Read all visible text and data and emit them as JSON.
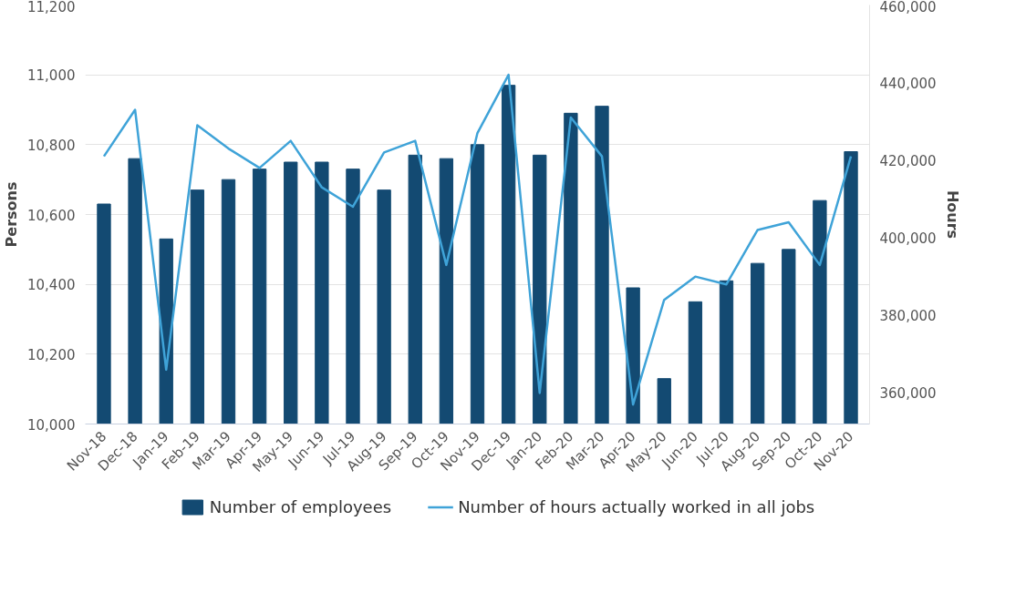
{
  "chart_data": {
    "type": "bar",
    "categories": [
      "Nov-18",
      "Dec-18",
      "Jan-19",
      "Feb-19",
      "Mar-19",
      "Apr-19",
      "May-19",
      "Jun-19",
      "Jul-19",
      "Aug-19",
      "Sep-19",
      "Oct-19",
      "Nov-19",
      "Dec-19",
      "Jan-20",
      "Feb-20",
      "Mar-20",
      "Apr-20",
      "May-20",
      "Jun-20",
      "Jul-20",
      "Aug-20",
      "Sep-20",
      "Oct-20",
      "Nov-20"
    ],
    "series": [
      {
        "name": "Number of employees",
        "color": "#134a72",
        "values": [
          10630,
          10760,
          10530,
          10670,
          10700,
          10730,
          10750,
          10750,
          10730,
          10670,
          10770,
          10760,
          10800,
          10970,
          10770,
          10890,
          10910,
          10390,
          10130,
          10350,
          10410,
          10460,
          10500,
          10640,
          10780
        ]
      },
      {
        "name": "Number of hours actually worked in all jobs",
        "type": "line",
        "axis": "y2",
        "color": "#3fa3d8",
        "values": [
          421000,
          433000,
          366000,
          429000,
          423000,
          418000,
          425000,
          413000,
          408000,
          422000,
          425000,
          393000,
          427000,
          442000,
          360000,
          431000,
          421000,
          357000,
          384000,
          390000,
          388000,
          402000,
          404000,
          393000,
          421000
        ]
      }
    ],
    "ylabel": "Persons",
    "y2label": "Hours",
    "ylim": [
      10000,
      11200
    ],
    "yticks": [
      {
        "value": 10000,
        "label": "10,000"
      },
      {
        "value": 10200,
        "label": "10,200"
      },
      {
        "value": 10400,
        "label": "10,400"
      },
      {
        "value": 10600,
        "label": "10,600"
      },
      {
        "value": 10800,
        "label": "10,800"
      },
      {
        "value": 11000,
        "label": "11,000"
      },
      {
        "value": 11200,
        "label": "11,200"
      }
    ],
    "y2lim": [
      352000,
      460000
    ],
    "y2ticks": [
      {
        "value": 360000,
        "label": "360,000"
      },
      {
        "value": 380000,
        "label": "380,000"
      },
      {
        "value": 400000,
        "label": "400,000"
      },
      {
        "value": 420000,
        "label": "420,000"
      },
      {
        "value": 440000,
        "label": "440,000"
      },
      {
        "value": 460000,
        "label": "460,000"
      }
    ],
    "grid": "y",
    "legend": "bottom",
    "line_style": "solid",
    "marker": "none"
  }
}
